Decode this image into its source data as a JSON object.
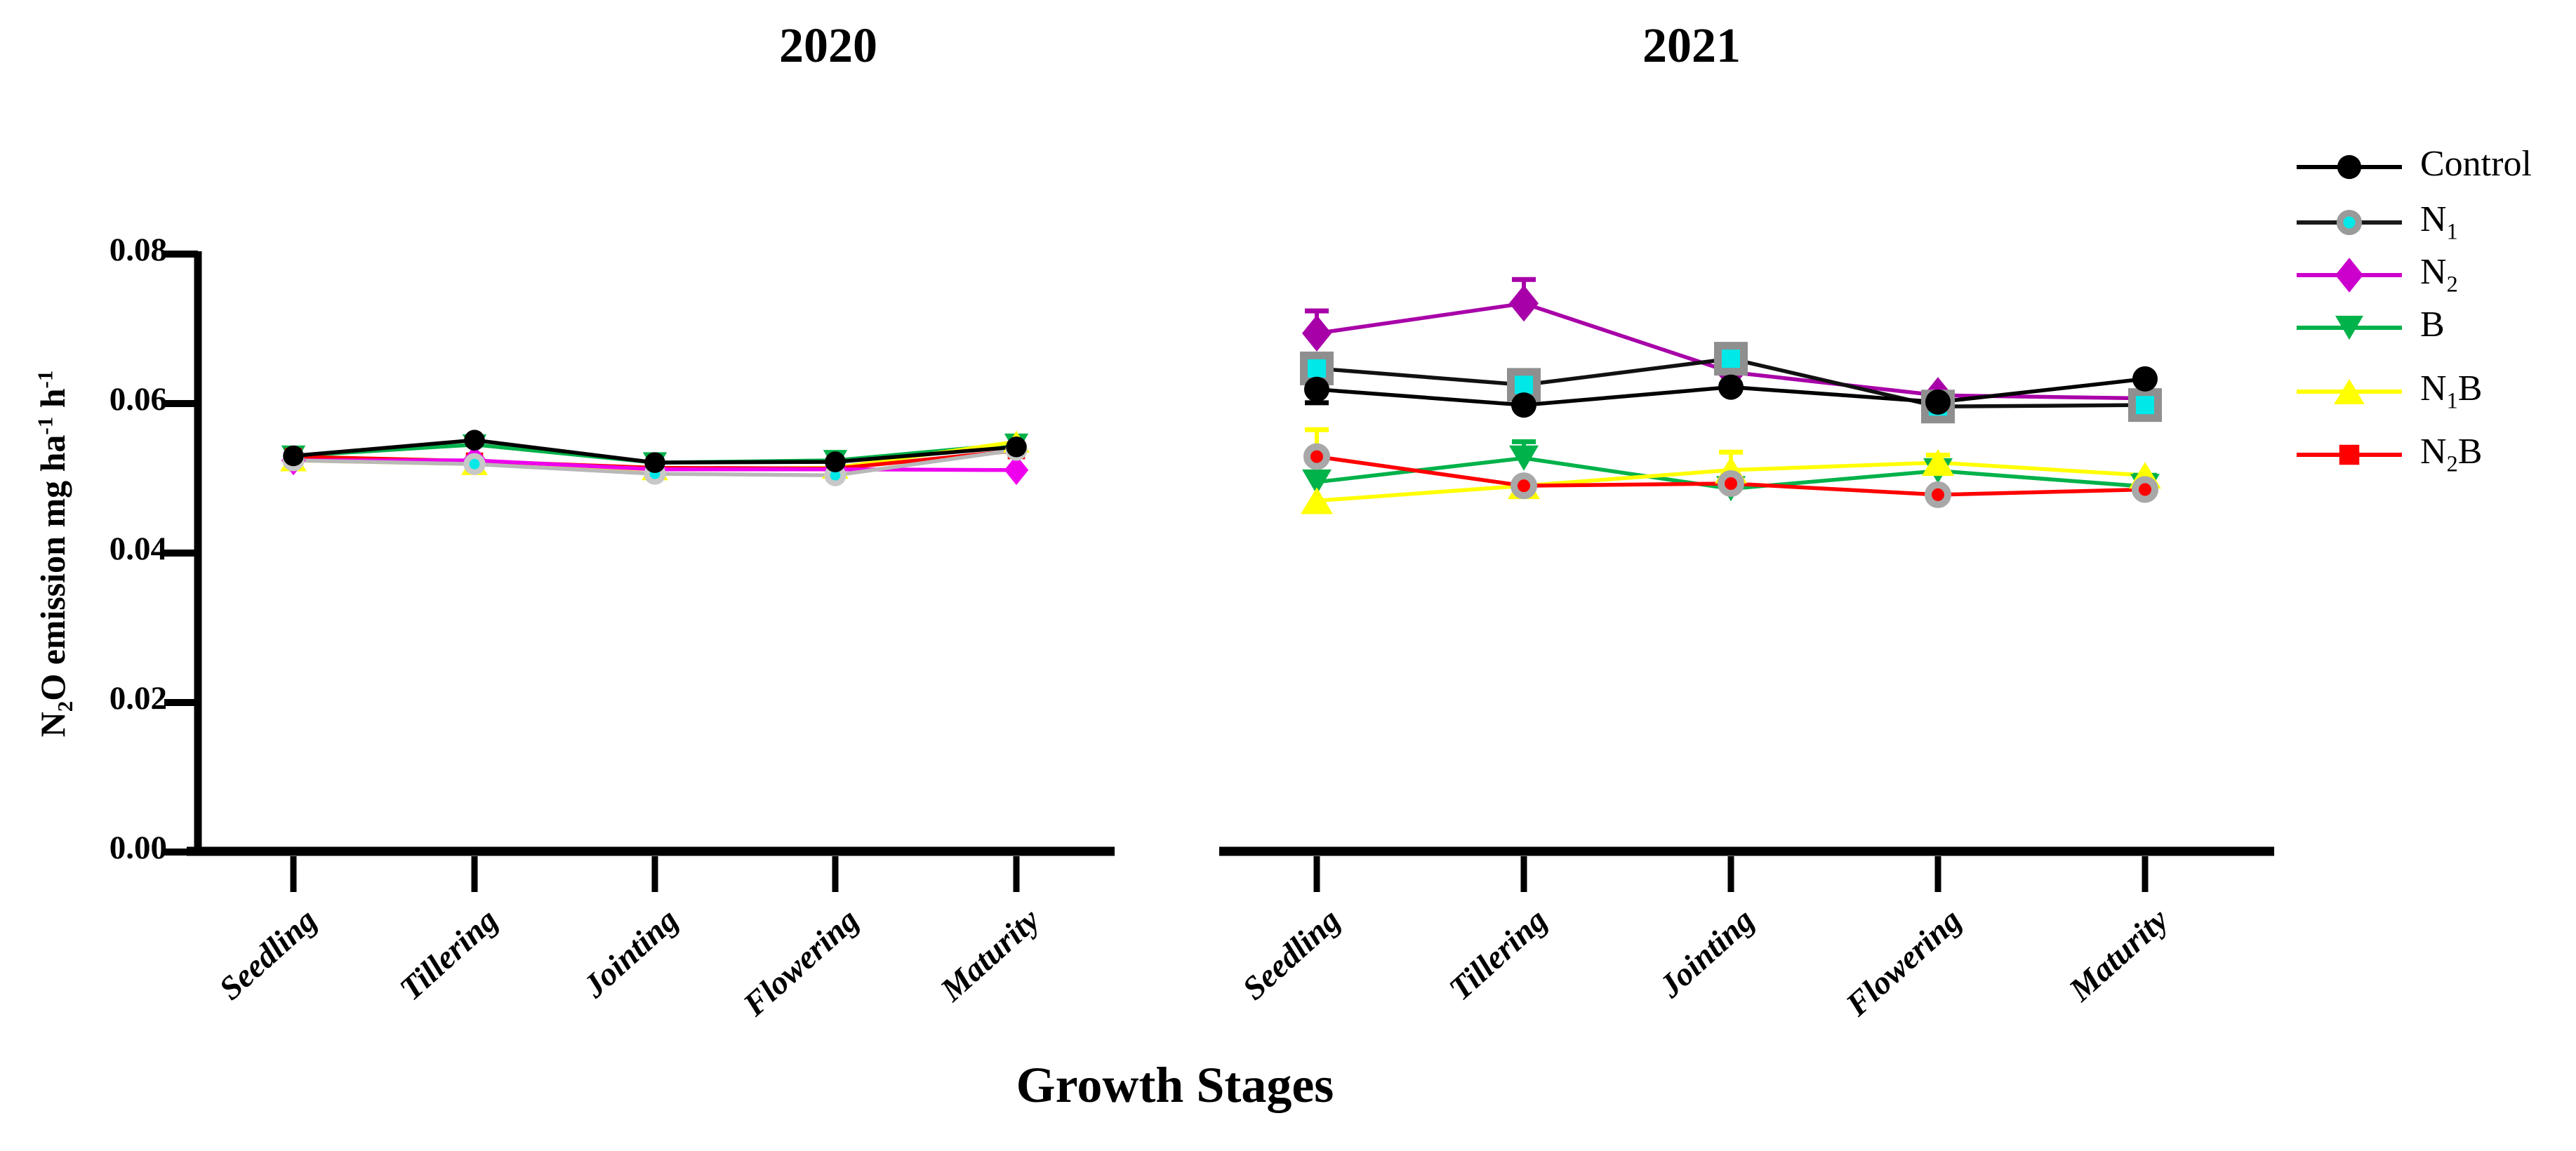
{
  "chart_data": {
    "type": "line",
    "title_2020": "2020",
    "title_2021": "2021",
    "xlabel": "Growth Stages",
    "ylabel_parts": [
      {
        "t": "N"
      },
      {
        "sub": "2"
      },
      {
        "t": "O emission mg ha"
      },
      {
        "sup": "-1"
      },
      {
        "t": " h"
      },
      {
        "sup": "-1"
      }
    ],
    "categories": [
      "Seedling",
      "Tillering",
      "Jointing",
      "Flowering",
      "Maturity"
    ],
    "y_axis": {
      "min": 0.0,
      "max": 0.08,
      "ticks": [
        0.0,
        0.02,
        0.04,
        0.06,
        0.08
      ],
      "tick_labels": [
        "0.00",
        "0.02",
        "0.04",
        "0.06",
        "0.08"
      ],
      "grid": false
    },
    "legend_position": "right",
    "panels": [
      {
        "title": "2020",
        "series": [
          {
            "name": "B",
            "color": "#00B24A",
            "marker": "tri-down",
            "values": [
              0.053,
              0.0545,
              0.0521,
              0.0524,
              0.0546
            ],
            "err": [
              0,
              0,
              0,
              0,
              0
            ]
          },
          {
            "name": "N1B",
            "color": "#FFFF00",
            "marker": "tri-up",
            "values": [
              0.0524,
              0.0519,
              0.0512,
              0.0514,
              0.0549
            ],
            "err": [
              0,
              0,
              0,
              0,
              0
            ]
          },
          {
            "name": "N2B",
            "color": "#FF0000",
            "marker": "square",
            "values": [
              0.0529,
              0.0523,
              0.0514,
              0.0513,
              0.0537
            ],
            "err": [
              0,
              0,
              0,
              0,
              0
            ]
          },
          {
            "name": "N2",
            "color": "#EE00EE",
            "marker": "diamond",
            "values": [
              0.0524,
              0.0524,
              0.0512,
              0.0512,
              0.0511
            ],
            "err": [
              0,
              0,
              0,
              0,
              0
            ]
          },
          {
            "name": "N1",
            "color": "#00E8E8",
            "line_color": "#b8b8b8",
            "ring": "#c8c8c8",
            "marker": "circle-ring",
            "values": [
              0.0524,
              0.0519,
              0.0506,
              0.0504,
              0.0538
            ],
            "err": [
              0,
              0,
              0,
              0,
              0
            ]
          },
          {
            "name": "Control",
            "color": "#000000",
            "marker": "circle",
            "values": [
              0.053,
              0.0551,
              0.0521,
              0.0522,
              0.0542
            ],
            "err": [
              0,
              0,
              0,
              0,
              0
            ]
          }
        ]
      },
      {
        "title": "2021",
        "series": [
          {
            "name": "B",
            "color": "#00B24A",
            "marker": "tri-down",
            "values": [
              0.0495,
              0.0527,
              0.0486,
              0.051,
              0.0489
            ],
            "err": [
              0,
              0.0022,
              0,
              0,
              0.0015
            ]
          },
          {
            "name": "N1B",
            "color": "#FFFF00",
            "marker": "tri-up",
            "values": [
              0.047,
              0.049,
              0.0511,
              0.0521,
              0.0504
            ],
            "err": [
              0.0095,
              0,
              0.0024,
              0.001,
              0
            ]
          },
          {
            "name": "N2B",
            "color": "#FF0000",
            "marker": "circle-ring",
            "ring": "#a8a8a8",
            "values": [
              0.0529,
              0.049,
              0.0493,
              0.0478,
              0.0485
            ],
            "err": [
              0,
              0,
              0,
              0,
              0
            ]
          },
          {
            "name": "N2",
            "color": "#A800A8",
            "marker": "diamond",
            "values": [
              0.0694,
              0.0734,
              0.0642,
              0.0611,
              0.0607
            ],
            "err": [
              0.003,
              0.0032,
              0,
              0,
              0
            ]
          },
          {
            "name": "N1",
            "color": "#00E8E8",
            "line_color": "#111111",
            "ring": "#8f8f8f",
            "marker": "square-ring",
            "values": [
              0.0647,
              0.0625,
              0.066,
              0.0596,
              0.0598
            ],
            "err": [
              0,
              0,
              0,
              0,
              0
            ]
          },
          {
            "name": "Control",
            "color": "#000000",
            "marker": "circle",
            "values": [
              0.0619,
              0.0598,
              0.0622,
              0.0602,
              0.0633
            ],
            "err": [
              -0.0018,
              0,
              0,
              0,
              0
            ]
          }
        ]
      }
    ],
    "legend": [
      {
        "name": "Control",
        "parts": [
          {
            "t": "Control"
          }
        ],
        "marker": "circle",
        "color": "#000000",
        "line": "#000000"
      },
      {
        "name": "N1",
        "parts": [
          {
            "t": "N"
          },
          {
            "sub": "1"
          }
        ],
        "marker": "circle-ring",
        "color": "#00E8E8",
        "ring": "#9a9a9a",
        "line": "#1a1a1a"
      },
      {
        "name": "N2",
        "parts": [
          {
            "t": "N"
          },
          {
            "sub": "2"
          }
        ],
        "marker": "diamond",
        "color": "#CC00CC",
        "line": "#CC00CC"
      },
      {
        "name": "B",
        "parts": [
          {
            "t": "B"
          }
        ],
        "marker": "tri-down",
        "color": "#00B24A",
        "line": "#00B24A"
      },
      {
        "name": "N1B",
        "parts": [
          {
            "t": "N"
          },
          {
            "sub": "1"
          },
          {
            "t": "B"
          }
        ],
        "marker": "tri-up",
        "color": "#FFFF00",
        "line": "#FFFF00"
      },
      {
        "name": "N2B",
        "parts": [
          {
            "t": "N"
          },
          {
            "sub": "2"
          },
          {
            "t": "B"
          }
        ],
        "marker": "square",
        "color": "#FF0000",
        "line": "#FF0000"
      }
    ]
  }
}
